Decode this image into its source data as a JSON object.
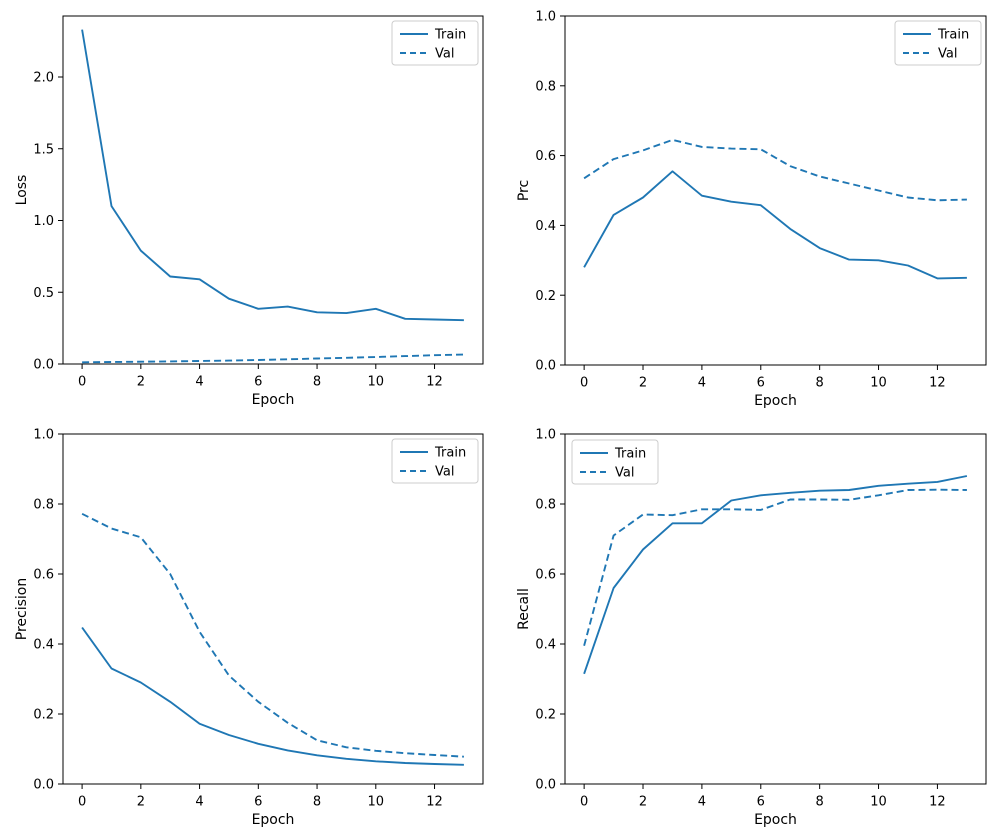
{
  "figure": {
    "background": "#ffffff",
    "line_color": "#1f77b4",
    "axis_color": "#000000",
    "legend_border": "#cccccc",
    "legend_background": "#ffffff"
  },
  "chart_data": [
    {
      "id": "loss",
      "type": "line",
      "title": "",
      "xlabel": "Epoch",
      "ylabel": "Loss",
      "x": [
        0,
        1,
        2,
        3,
        4,
        5,
        6,
        7,
        8,
        9,
        10,
        11,
        12,
        13
      ],
      "xlim": [
        -0.65,
        13.65
      ],
      "ylim": [
        0,
        2.425
      ],
      "xticks": [
        0,
        2,
        4,
        6,
        8,
        10,
        12
      ],
      "xtick_labels": [
        "0",
        "2",
        "4",
        "6",
        "8",
        "10",
        "12"
      ],
      "yticks": [
        0.0,
        0.5,
        1.0,
        1.5,
        2.0
      ],
      "ytick_labels": [
        "0.0",
        "0.5",
        "1.0",
        "1.5",
        "2.0"
      ],
      "grid": false,
      "legend_position": "top-right",
      "series": [
        {
          "name": "Train",
          "style": "solid",
          "values": [
            2.33,
            1.1,
            0.79,
            0.61,
            0.59,
            0.455,
            0.385,
            0.4,
            0.36,
            0.355,
            0.385,
            0.315,
            0.31,
            0.305
          ]
        },
        {
          "name": "Val",
          "style": "dashed",
          "values": [
            0.012,
            0.014,
            0.016,
            0.018,
            0.021,
            0.024,
            0.028,
            0.033,
            0.038,
            0.043,
            0.049,
            0.055,
            0.061,
            0.066
          ]
        }
      ]
    },
    {
      "id": "prc",
      "type": "line",
      "title": "",
      "xlabel": "Epoch",
      "ylabel": "Prc",
      "x": [
        0,
        1,
        2,
        3,
        4,
        5,
        6,
        7,
        8,
        9,
        10,
        11,
        12,
        13
      ],
      "xlim": [
        -0.65,
        13.65
      ],
      "ylim": [
        0,
        1.0
      ],
      "xticks": [
        0,
        2,
        4,
        6,
        8,
        10,
        12
      ],
      "xtick_labels": [
        "0",
        "2",
        "4",
        "6",
        "8",
        "10",
        "12"
      ],
      "yticks": [
        0.0,
        0.2,
        0.4,
        0.6,
        0.8,
        1.0
      ],
      "ytick_labels": [
        "0.0",
        "0.2",
        "0.4",
        "0.6",
        "0.8",
        "1.0"
      ],
      "grid": false,
      "legend_position": "top-right",
      "series": [
        {
          "name": "Train",
          "style": "solid",
          "values": [
            0.28,
            0.43,
            0.48,
            0.555,
            0.485,
            0.468,
            0.458,
            0.39,
            0.335,
            0.302,
            0.3,
            0.285,
            0.248,
            0.25
          ]
        },
        {
          "name": "Val",
          "style": "dashed",
          "values": [
            0.535,
            0.59,
            0.615,
            0.645,
            0.625,
            0.62,
            0.618,
            0.57,
            0.54,
            0.52,
            0.5,
            0.48,
            0.472,
            0.474
          ]
        }
      ]
    },
    {
      "id": "precision",
      "type": "line",
      "title": "",
      "xlabel": "Epoch",
      "ylabel": "Precision",
      "x": [
        0,
        1,
        2,
        3,
        4,
        5,
        6,
        7,
        8,
        9,
        10,
        11,
        12,
        13
      ],
      "xlim": [
        -0.65,
        13.65
      ],
      "ylim": [
        0,
        1.0
      ],
      "xticks": [
        0,
        2,
        4,
        6,
        8,
        10,
        12
      ],
      "xtick_labels": [
        "0",
        "2",
        "4",
        "6",
        "8",
        "10",
        "12"
      ],
      "yticks": [
        0.0,
        0.2,
        0.4,
        0.6,
        0.8,
        1.0
      ],
      "ytick_labels": [
        "0.0",
        "0.2",
        "0.4",
        "0.6",
        "0.8",
        "1.0"
      ],
      "grid": false,
      "legend_position": "top-right",
      "series": [
        {
          "name": "Train",
          "style": "solid",
          "values": [
            0.447,
            0.33,
            0.29,
            0.235,
            0.172,
            0.14,
            0.115,
            0.096,
            0.082,
            0.072,
            0.065,
            0.06,
            0.057,
            0.055
          ]
        },
        {
          "name": "Val",
          "style": "dashed",
          "values": [
            0.772,
            0.73,
            0.705,
            0.6,
            0.435,
            0.31,
            0.235,
            0.175,
            0.125,
            0.105,
            0.095,
            0.088,
            0.083,
            0.078
          ]
        }
      ]
    },
    {
      "id": "recall",
      "type": "line",
      "title": "",
      "xlabel": "Epoch",
      "ylabel": "Recall",
      "x": [
        0,
        1,
        2,
        3,
        4,
        5,
        6,
        7,
        8,
        9,
        10,
        11,
        12,
        13
      ],
      "xlim": [
        -0.65,
        13.65
      ],
      "ylim": [
        0,
        1.0
      ],
      "xticks": [
        0,
        2,
        4,
        6,
        8,
        10,
        12
      ],
      "xtick_labels": [
        "0",
        "2",
        "4",
        "6",
        "8",
        "10",
        "12"
      ],
      "yticks": [
        0.0,
        0.2,
        0.4,
        0.6,
        0.8,
        1.0
      ],
      "ytick_labels": [
        "0.0",
        "0.2",
        "0.4",
        "0.6",
        "0.8",
        "1.0"
      ],
      "grid": false,
      "legend_position": "top-left",
      "series": [
        {
          "name": "Train",
          "style": "solid",
          "values": [
            0.315,
            0.56,
            0.67,
            0.745,
            0.745,
            0.81,
            0.825,
            0.832,
            0.838,
            0.84,
            0.852,
            0.858,
            0.863,
            0.88
          ]
        },
        {
          "name": "Val",
          "style": "dashed",
          "values": [
            0.395,
            0.71,
            0.77,
            0.768,
            0.785,
            0.785,
            0.783,
            0.813,
            0.813,
            0.812,
            0.825,
            0.84,
            0.841,
            0.84
          ]
        }
      ]
    }
  ]
}
